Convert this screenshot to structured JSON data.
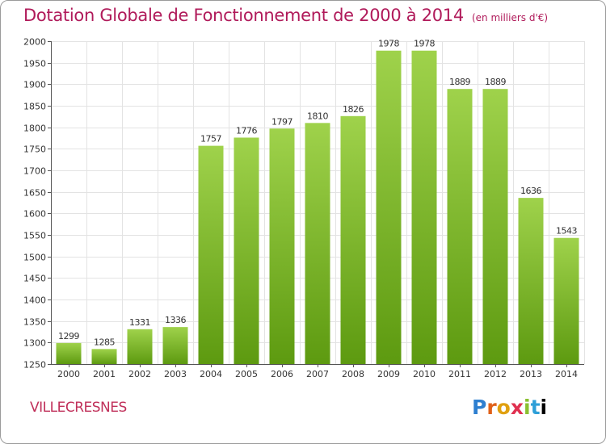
{
  "header": {
    "title": "Dotation Globale de Fonctionnement de 2000 à 2014",
    "unit": "(en milliers d'€)"
  },
  "footer": {
    "commune": "VILLECRESNES",
    "logo": "Proxiti"
  },
  "colors": {
    "title": "#b01a5a",
    "bar_top": "#9fd24b",
    "bar_bottom": "#5d9a10",
    "grid": "#e3e3e3",
    "axis": "#555555"
  },
  "chart_data": {
    "type": "bar",
    "title": "Dotation Globale de Fonctionnement de 2000 à 2014",
    "categories": [
      "2000",
      "2001",
      "2002",
      "2003",
      "2004",
      "2005",
      "2006",
      "2007",
      "2008",
      "2009",
      "2010",
      "2011",
      "2012",
      "2013",
      "2014"
    ],
    "values": [
      1299,
      1285,
      1331,
      1336,
      1757,
      1776,
      1797,
      1810,
      1826,
      1978,
      1978,
      1889,
      1889,
      1636,
      1543
    ],
    "ylim": [
      1250,
      2000
    ],
    "yticks": [
      1250,
      1300,
      1350,
      1400,
      1450,
      1500,
      1550,
      1600,
      1650,
      1700,
      1750,
      1800,
      1850,
      1900,
      1950,
      2000
    ],
    "grid": true,
    "data_labels": true,
    "legend": "none"
  }
}
